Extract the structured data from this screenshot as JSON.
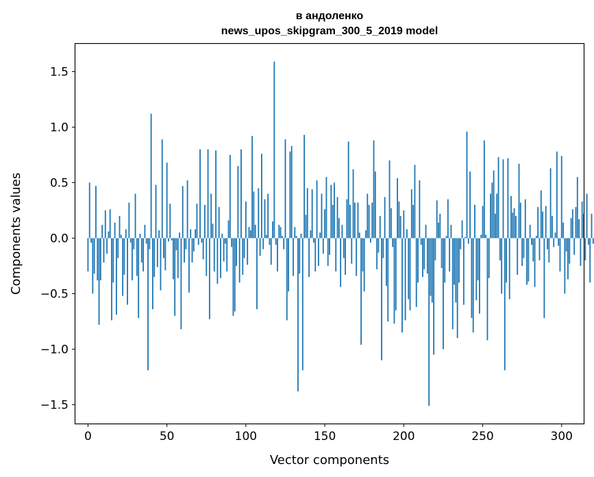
{
  "chart_data": {
    "type": "bar",
    "title": "в андоленко",
    "subtitle": "news_upos_skipgram_300_5_2019 model",
    "xlabel": "Vector components",
    "ylabel": "Components values",
    "xlim": [
      -8,
      314
    ],
    "ylim": [
      -1.67,
      1.75
    ],
    "xticks": [
      0,
      50,
      100,
      150,
      200,
      250,
      300
    ],
    "yticks": [
      -1.5,
      -1.0,
      -0.5,
      0.0,
      0.5,
      1.0,
      1.5
    ],
    "ytick_labels": [
      "−1.5",
      "−1.0",
      "−0.5",
      "0.0",
      "0.5",
      "1.0",
      "1.5"
    ],
    "bar_color": "#1f77b4",
    "values": [
      -0.3,
      0.5,
      -0.04,
      -0.5,
      -0.32,
      0.47,
      -0.38,
      -0.78,
      -0.38,
      0.12,
      -0.22,
      0.25,
      -0.14,
      0.06,
      0.26,
      -0.74,
      -0.4,
      0.14,
      -0.69,
      -0.18,
      0.2,
      0.03,
      -0.52,
      -0.33,
      0.08,
      -0.6,
      0.32,
      -0.04,
      -0.38,
      -0.1,
      0.4,
      -0.34,
      -0.72,
      0.04,
      -0.22,
      -0.3,
      0.12,
      -0.05,
      -1.19,
      -0.1,
      1.12,
      -0.64,
      -0.35,
      0.48,
      -0.26,
      0.07,
      -0.47,
      0.89,
      -0.18,
      -0.29,
      0.68,
      -0.03,
      0.31,
      -0.02,
      -0.37,
      -0.7,
      -0.11,
      -0.36,
      0.05,
      -0.82,
      0.47,
      -0.22,
      -0.1,
      0.52,
      -0.49,
      0.08,
      -0.22,
      -0.12,
      0.08,
      0.31,
      -0.06,
      0.8,
      -0.04,
      -0.19,
      0.3,
      -0.34,
      0.8,
      -0.73,
      0.4,
      0.13,
      -0.3,
      0.79,
      -0.41,
      0.28,
      -0.36,
      0.04,
      -0.21,
      -0.05,
      -0.3,
      0.16,
      0.75,
      -0.08,
      -0.7,
      -0.66,
      -0.25,
      0.65,
      -0.4,
      0.8,
      -0.33,
      -0.18,
      0.33,
      -0.24,
      0.1,
      0.07,
      0.92,
      0.42,
      0.12,
      -0.64,
      0.45,
      -0.16,
      0.76,
      -0.1,
      0.35,
      0.03,
      0.4,
      -0.06,
      -0.24,
      0.15,
      1.59,
      -0.06,
      -0.3,
      0.12,
      0.1,
      0.02,
      -0.1,
      0.89,
      -0.74,
      -0.48,
      0.78,
      0.83,
      -0.34,
      0.1,
      0.02,
      -1.38,
      -0.32,
      0.04,
      -1.19,
      0.93,
      0.21,
      0.45,
      -0.35,
      0.07,
      0.44,
      -0.04,
      -0.3,
      0.52,
      -0.25,
      0.05,
      0.4,
      -0.14,
      0.26,
      0.55,
      -0.25,
      -0.15,
      0.48,
      0.3,
      0.5,
      -0.3,
      0.37,
      0.18,
      -0.44,
      0.12,
      -0.18,
      -0.33,
      0.35,
      0.87,
      0.3,
      -0.23,
      0.62,
      0.32,
      -0.34,
      0.32,
      0.05,
      -0.96,
      -0.3,
      -0.48,
      0.07,
      0.4,
      0.3,
      -0.04,
      0.32,
      0.88,
      0.6,
      -0.28,
      -0.13,
      0.2,
      -1.1,
      -0.18,
      0.37,
      -0.43,
      -0.75,
      0.7,
      0.27,
      -0.08,
      -0.77,
      -0.65,
      0.54,
      0.33,
      0.2,
      -0.85,
      0.25,
      -0.74,
      0.08,
      -0.55,
      -0.65,
      0.44,
      0.3,
      0.66,
      -0.62,
      -0.4,
      0.52,
      -0.06,
      -0.35,
      -0.28,
      0.12,
      -0.32,
      -1.51,
      -0.52,
      -0.58,
      -1.05,
      -0.2,
      0.34,
      0.14,
      0.22,
      -0.27,
      -1.0,
      -0.4,
      0.02,
      0.35,
      -0.3,
      0.12,
      -0.82,
      -0.42,
      -0.58,
      -0.9,
      -0.4,
      -0.1,
      0.16,
      -0.6,
      0.01,
      0.96,
      -0.05,
      0.6,
      -0.72,
      -0.85,
      0.3,
      -0.56,
      -0.38,
      -0.68,
      0.03,
      0.29,
      0.88,
      0.03,
      -0.92,
      -0.36,
      0.4,
      0.5,
      0.61,
      0.22,
      0.4,
      0.73,
      -0.2,
      -0.5,
      0.71,
      -1.19,
      -0.4,
      0.72,
      -0.55,
      0.38,
      0.23,
      0.27,
      0.2,
      -0.33,
      0.67,
      0.32,
      -0.25,
      -0.18,
      0.35,
      -0.42,
      -0.39,
      0.12,
      -0.06,
      -0.21,
      -0.44,
      0.02,
      0.28,
      -0.2,
      0.43,
      0.24,
      -0.72,
      0.29,
      -0.1,
      -0.22,
      0.63,
      0.2,
      -0.08,
      0.05,
      0.78,
      -0.07,
      -0.3,
      0.74,
      0.14,
      -0.5,
      -0.12,
      -0.37,
      -0.23,
      0.18,
      0.26,
      -0.15,
      0.28,
      0.55,
      0.17,
      -0.25,
      0.33,
      0.22,
      -0.2,
      0.4,
      -0.06,
      -0.4,
      0.22,
      -0.05,
      0.3,
      0.24,
      -0.3,
      0.15,
      -0.44,
      0.33,
      -0.31,
      -0.08,
      0.06,
      -0.26,
      0.24,
      0.36,
      -0.25,
      0.4,
      -0.14,
      -0.23,
      0.1,
      0.32,
      -0.18,
      0.2,
      0.22,
      -0.43,
      0.12,
      0.41,
      -0.16,
      0.05,
      -0.14,
      0.32,
      -0.24,
      -0.06,
      0.18,
      0.31,
      -0.24,
      -0.17,
      0.22,
      -0.04,
      -0.32,
      0.08,
      -0.12,
      0.22,
      -0.1,
      0.04,
      -0.26,
      0.12,
      -0.05,
      0.08,
      -0.26,
      0.18,
      -0.87
    ]
  }
}
